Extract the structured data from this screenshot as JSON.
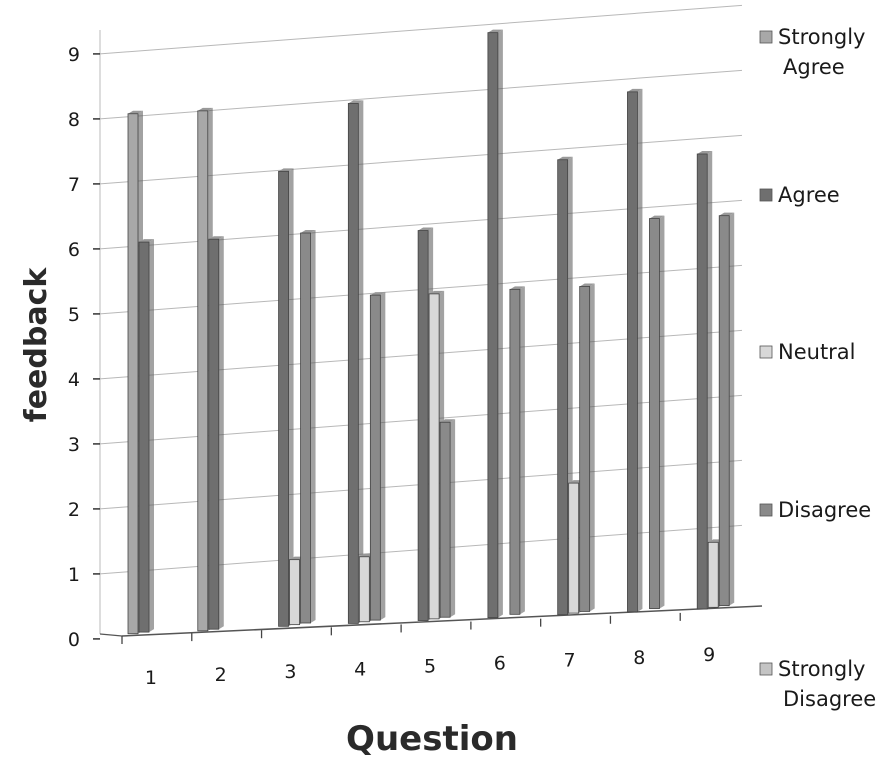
{
  "chart_data": {
    "type": "bar",
    "categories": [
      "1",
      "2",
      "3",
      "4",
      "5",
      "6",
      "7",
      "8",
      "9"
    ],
    "series": [
      {
        "name": "Strongly Agree",
        "color": "#a8a8a8",
        "values": [
          8,
          8,
          0,
          0,
          0,
          0,
          0,
          0,
          0
        ]
      },
      {
        "name": "Agree",
        "color": "#6f6f6f",
        "values": [
          6,
          6,
          7,
          8,
          6,
          9,
          7,
          8,
          7
        ]
      },
      {
        "name": "Neutral",
        "color": "#d8d8d8",
        "values": [
          0,
          0,
          1,
          1,
          5,
          0,
          2,
          0,
          1
        ]
      },
      {
        "name": "Disagree",
        "color": "#8a8a8a",
        "values": [
          0,
          0,
          6,
          5,
          3,
          5,
          5,
          6,
          6
        ]
      },
      {
        "name": "Strongly Disagree",
        "color": "#c4c4c4",
        "values": [
          0,
          0,
          0,
          0,
          0,
          0,
          0,
          0,
          0
        ]
      }
    ],
    "legend_lines": [
      [
        "Strongly",
        "Agree"
      ],
      [
        "Agree"
      ],
      [
        "Neutral"
      ],
      [
        "Disagree"
      ],
      [
        "Strongly",
        "Disagree"
      ]
    ],
    "yticks": [
      "0",
      "1",
      "2",
      "3",
      "4",
      "5",
      "6",
      "7",
      "8",
      "9"
    ],
    "ylim": [
      0,
      9
    ],
    "xlabel": "Question",
    "ylabel": "feedback",
    "grid": true,
    "legend_position": "right"
  }
}
